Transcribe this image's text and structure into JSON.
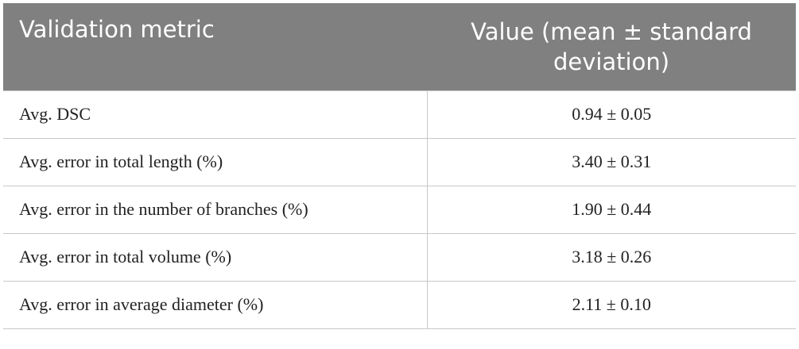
{
  "table": {
    "header": [
      "Validation metric",
      "Value (mean ± standard deviation)"
    ],
    "rows": [
      [
        "Avg. DSC",
        "0.94 ± 0.05"
      ],
      [
        "Avg. error in total length (%)",
        "3.40 ± 0.31"
      ],
      [
        "Avg. error in the number of branches (%)",
        "1.90 ± 0.44"
      ],
      [
        "Avg. error in total volume (%)",
        "3.18 ± 0.26"
      ],
      [
        "Avg. error in average diameter (%)",
        "2.11 ± 0.10"
      ]
    ]
  }
}
